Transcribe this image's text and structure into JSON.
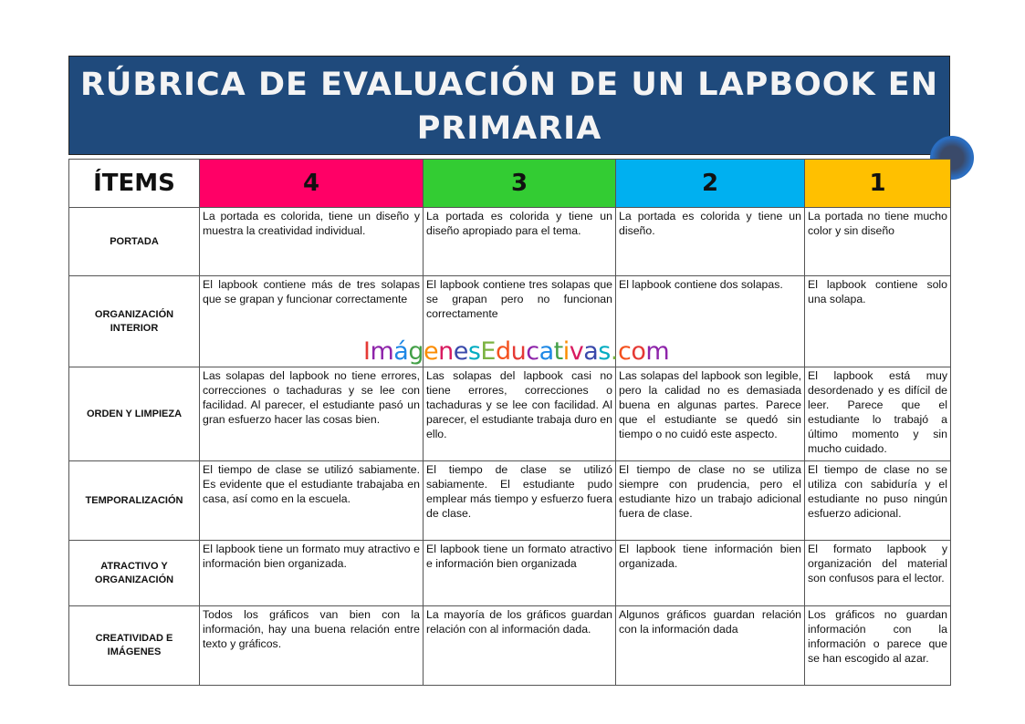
{
  "title": "RÚBRICA DE EVALUACIÓN DE UN LAPBOOK EN PRIMARIA",
  "headers": [
    "ÍTEMS",
    "4",
    "3",
    "2",
    "1"
  ],
  "header_colors": [
    "#ffffff",
    "#ff0066",
    "#33cc33",
    "#00b0f0",
    "#ffc000"
  ],
  "rows": [
    {
      "item": "PORTADA",
      "cells": [
        "La portada es colorida, tiene un diseño y muestra la creatividad  individual.",
        "La portada es colorida y tiene un diseño apropiado para el tema.",
        "La portada es colorida y tiene un diseño.",
        "La portada no tiene mucho color y sin diseño"
      ]
    },
    {
      "item": "ORGANIZACIÓN INTERIOR",
      "cells": [
        "El lapbook contiene más de tres solapas que se grapan y funcionar correctamente",
        "El lapbook contiene tres solapas que se grapan pero no funcionan correctamente",
        "El lapbook contiene dos solapas.",
        "El lapbook contiene solo una solapa."
      ]
    },
    {
      "item": "ORDEN Y LIMPIEZA",
      "cells": [
        "Las solapas del lapbook  no tiene errores, correcciones o tachaduras y se lee con facilidad. Al parecer, el estudiante pasó un gran esfuerzo hacer las cosas bien.",
        "Las solapas del lapbook casi no tiene errores, correcciones o tachaduras y se lee con facilidad. Al parecer, el estudiante trabaja duro en ello.",
        "Las solapas del lapbook son legible, pero la calidad no es demasiada buena en algunas partes. Parece que el estudiante se quedó sin tiempo o no cuidó este aspecto.",
        "El lapbook está muy desordenado y es difícil de leer. Parece que el estudiante lo trabajó a último momento y sin mucho cuidado."
      ]
    },
    {
      "item": "TEMPORALIZACIÓN",
      "cells": [
        "El tiempo de clase se utilizó sabiamente. Es evidente que el estudiante trabajaba en casa, así como en la escuela.",
        "El tiempo de clase se utilizó sabiamente. El estudiante pudo emplear más tiempo y esfuerzo fuera de clase.",
        "El tiempo de clase no se utiliza siempre con prudencia, pero el estudiante hizo un trabajo adicional fuera de clase.",
        "El tiempo de clase no se utiliza con sabiduría y el estudiante no puso ningún esfuerzo adicional."
      ]
    },
    {
      "item": "ATRACTIVO Y ORGANIZACIÓN",
      "cells": [
        "El lapbook tiene un formato muy atractivo e información bien organizada.",
        "El lapbook tiene un formato atractivo e información bien organizada",
        "El lapbook tiene información bien organizada.",
        "El formato lapbook y organización del material son confusos para el lector."
      ]
    },
    {
      "item": "CREATIVIDAD E IMÁGENES",
      "cells": [
        "Todos los gráficos van bien con la información, hay una buena relación entre texto y gráficos.",
        "La mayoría de los gráficos guardan relación con al información dada.",
        "Algunos gráficos guardan relación con la información dada",
        "Los gráficos no guardan información con la información o parece que se han escogido al azar."
      ]
    }
  ],
  "watermark": "ImágenesEducativas.com"
}
